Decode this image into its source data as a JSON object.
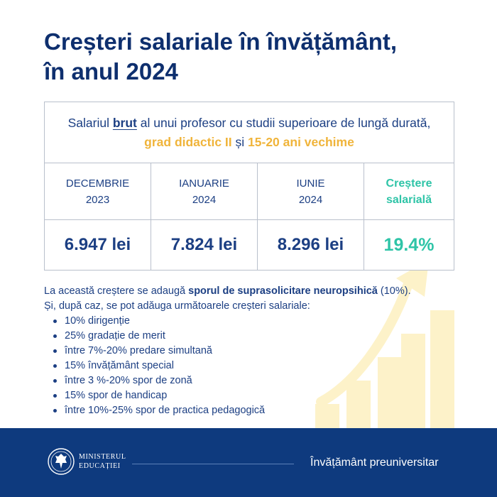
{
  "title": {
    "line1": "Creșteri salariale în învățământ,",
    "line2": "în anul 2024"
  },
  "info_box": {
    "prefix": "Salariul ",
    "brut": "brut",
    "mid": " al unui profesor cu studii superioare de lungă durată, ",
    "grade": "grad didactic II",
    "and": " și ",
    "seniority": "15-20 ani vechime"
  },
  "table": {
    "columns": [
      {
        "line1": "DECEMBRIE",
        "line2": "2023",
        "value": "6.947 lei"
      },
      {
        "line1": "IANUARIE",
        "line2": "2024",
        "value": "7.824 lei"
      },
      {
        "line1": "IUNIE",
        "line2": "2024",
        "value": "8.296 lei"
      },
      {
        "line1": "Creștere",
        "line2": "salarială",
        "value": "19.4%"
      }
    ]
  },
  "body": {
    "p1_prefix": "La această creștere se adaugă ",
    "p1_bold": "sporul de suprasolicitare neuropsihică",
    "p1_suffix": " (10%).",
    "p2": "Și, după caz, se pot adăuga următoarele creșteri salariale:",
    "bullets": [
      "10% dirigenție",
      "25% gradație de merit",
      "între 7%-20% predare simultană",
      "15% învățământ special",
      "între 3 %-20% spor de zonă",
      "15% spor de handicap",
      "între 10%-25% spor de practica pedagogică"
    ]
  },
  "footer": {
    "ministry_line1": "MINISTERUL",
    "ministry_line2": "EDUCAȚIEI",
    "label": "Învățământ preuniversitar"
  },
  "colors": {
    "navy": "#0e3a7e",
    "title": "#0e2f6e",
    "accent_yellow": "#f0b43a",
    "accent_green": "#2ec4a7",
    "decor_bars": "#fdf2c9"
  },
  "icons": {
    "logo": "coat-of-arms-icon",
    "bullet": "bullet-dot-icon",
    "growth_chart": "rising-bars-arrow-icon"
  }
}
